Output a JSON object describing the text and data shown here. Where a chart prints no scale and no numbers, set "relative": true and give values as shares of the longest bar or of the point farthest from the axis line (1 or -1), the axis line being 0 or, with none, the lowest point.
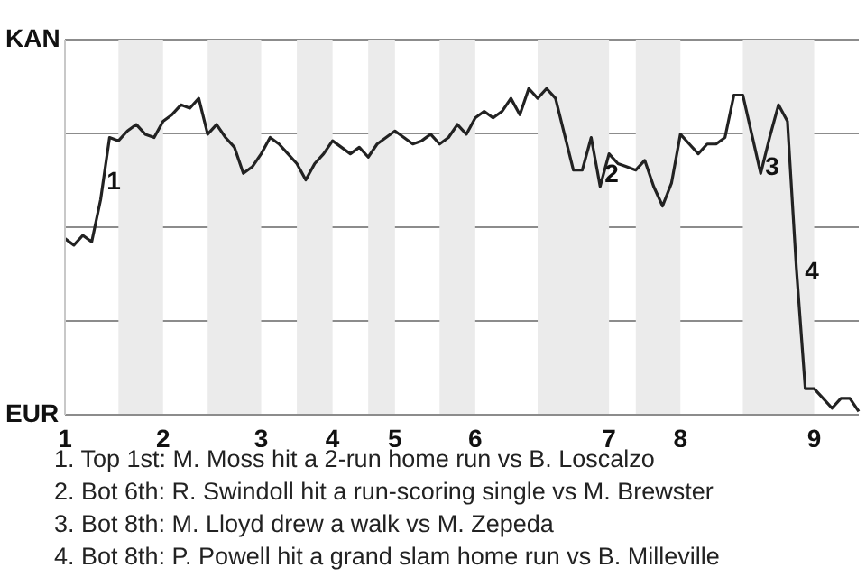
{
  "chart_data": {
    "type": "line",
    "relative": true,
    "categories": [
      "1",
      null,
      null,
      null,
      null,
      null,
      null,
      null,
      null,
      null,
      null,
      "2",
      null,
      null,
      null,
      null,
      null,
      null,
      null,
      null,
      null,
      null,
      "3",
      null,
      null,
      null,
      null,
      null,
      null,
      null,
      "4",
      null,
      null,
      null,
      null,
      null,
      null,
      "5",
      null,
      null,
      null,
      null,
      null,
      null,
      null,
      null,
      "6",
      null,
      null,
      null,
      null,
      null,
      null,
      null,
      null,
      null,
      null,
      null,
      null,
      null,
      null,
      "7",
      null,
      null,
      null,
      null,
      null,
      null,
      null,
      "8",
      null,
      null,
      null,
      null,
      null,
      null,
      null,
      null,
      null,
      null,
      null,
      null,
      null,
      null,
      "9",
      null,
      null,
      null,
      null,
      null
    ],
    "series": [
      {
        "color": "#222222",
        "values": [
          0.54,
          0.52,
          0.55,
          0.53,
          0.66,
          0.85,
          0.84,
          0.87,
          0.89,
          0.86,
          0.85,
          0.9,
          0.92,
          0.95,
          0.94,
          0.97,
          0.86,
          0.89,
          0.85,
          0.82,
          0.74,
          0.76,
          0.8,
          0.85,
          0.83,
          0.8,
          0.77,
          0.72,
          0.77,
          0.8,
          0.84,
          0.82,
          0.8,
          0.82,
          0.79,
          0.83,
          0.85,
          0.87,
          0.85,
          0.83,
          0.84,
          0.86,
          0.83,
          0.85,
          0.89,
          0.86,
          0.91,
          0.93,
          0.91,
          0.93,
          0.97,
          0.92,
          1,
          0.97,
          1,
          0.97,
          0.86,
          0.75,
          0.75,
          0.85,
          0.7,
          0.8,
          0.77,
          0.76,
          0.75,
          0.78,
          0.7,
          0.64,
          0.71,
          0.86,
          0.83,
          0.8,
          0.83,
          0.83,
          0.85,
          0.98,
          0.98,
          0.86,
          0.74,
          0.85,
          0.95,
          0.9,
          0.45,
          0.08,
          0.08,
          0.05,
          0.02,
          0.05,
          0.05,
          0.01
        ]
      }
    ],
    "grid": "y",
    "marker": "none",
    "legend": false,
    "annotations": [
      "KAN",
      "EUR",
      "1",
      "2",
      "3",
      "4",
      "1. Top 1st: M. Moss hit a 2-run home run vs B. Loscalzo",
      "2. Bot 6th: R. Swindoll hit a run-scoring single vs M. Brewster",
      "3. Bot 8th: M. Lloyd drew a walk vs M. Zepeda",
      "4. Bot 8th: P. Powell hit a grand slam home run vs B. Milleville"
    ]
  }
}
